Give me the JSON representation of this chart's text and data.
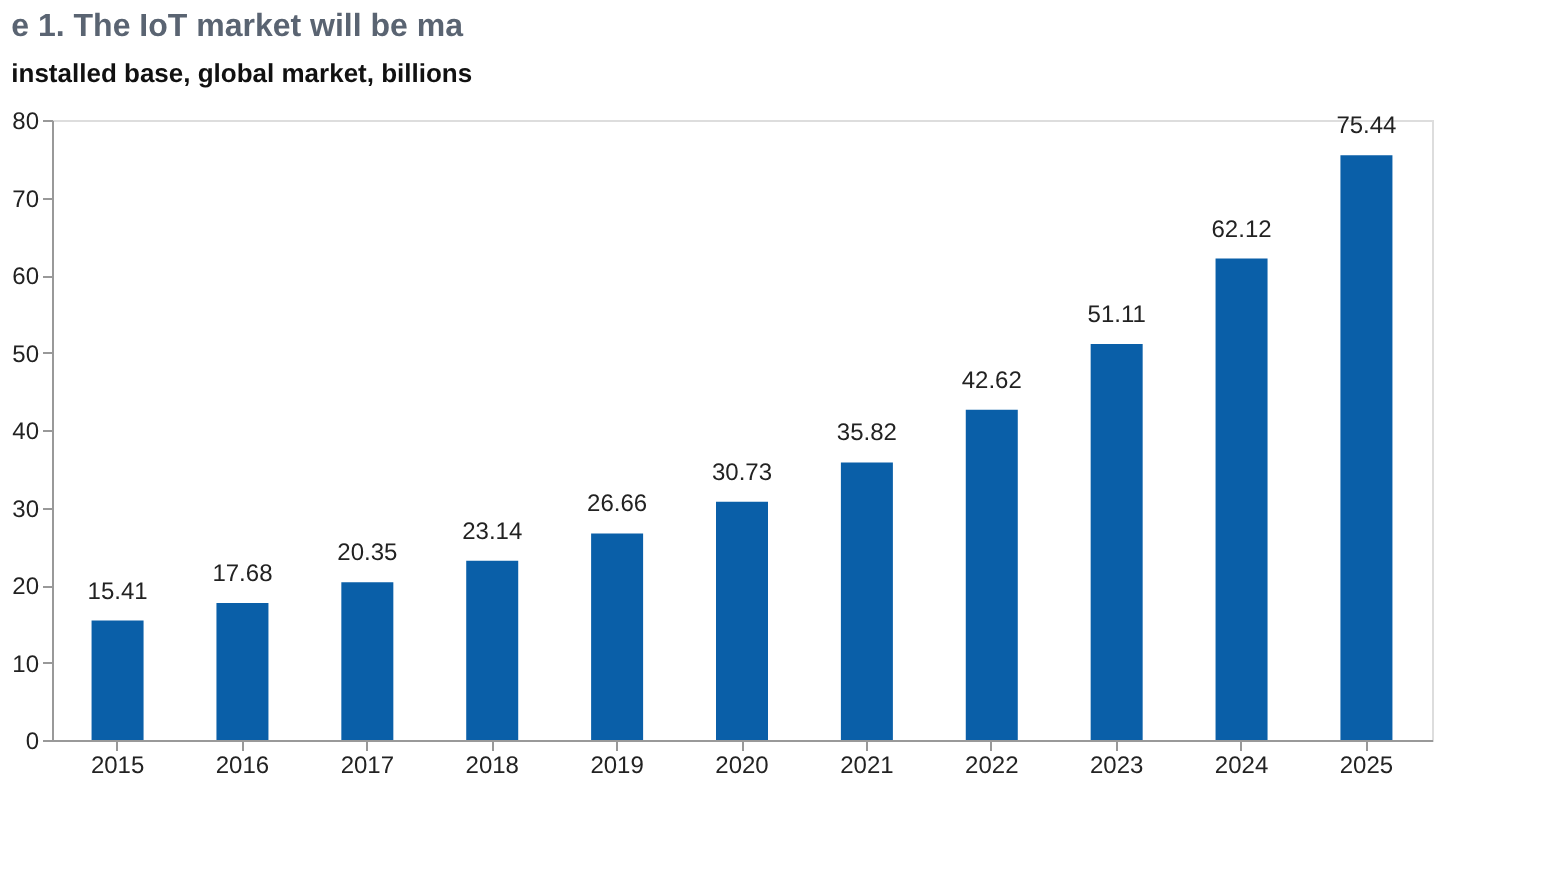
{
  "chart_data": {
    "type": "bar",
    "title": "e 1. The IoT market will be ma",
    "subtitle": "installed base, global market, billions",
    "categories": [
      "2015",
      "2016",
      "2017",
      "2018",
      "2019",
      "2020",
      "2021",
      "2022",
      "2023",
      "2024",
      "2025"
    ],
    "values": [
      15.41,
      17.68,
      20.35,
      23.14,
      26.66,
      30.73,
      35.82,
      42.62,
      51.11,
      62.12,
      75.44
    ],
    "color": "#0a5fa8",
    "ylim": [
      0,
      80
    ],
    "yticks": [
      0,
      10,
      20,
      30,
      40,
      50,
      60,
      70,
      80
    ],
    "grid": false,
    "data_labels": true
  }
}
